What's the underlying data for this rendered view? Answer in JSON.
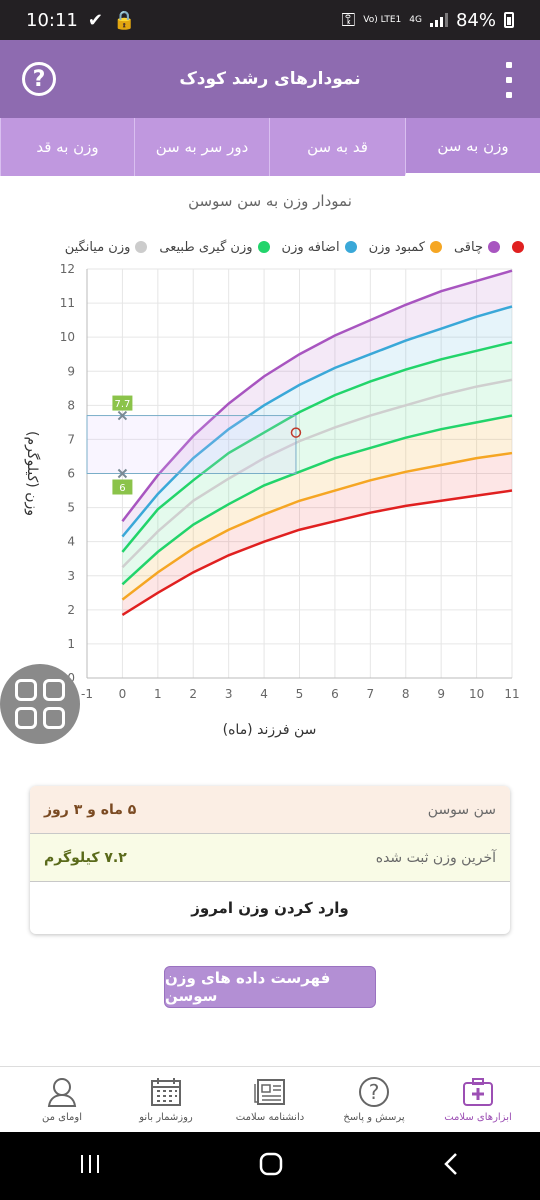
{
  "status": {
    "time": "10:11",
    "signal_label": "Vo) LTE1",
    "net": "4G",
    "battery": "84%"
  },
  "appbar": {
    "title": "نمودارهای رشد کودک",
    "help": "?"
  },
  "tabs": [
    {
      "label": "وزن به سن",
      "active": true
    },
    {
      "label": "قد به سن",
      "active": false
    },
    {
      "label": "دور سر به سن",
      "active": false
    },
    {
      "label": "وزن به قد",
      "active": false
    }
  ],
  "chart_title": "نمودار وزن به سن سوسن",
  "legend": [
    {
      "label": "چاقی",
      "color": "#a855c0"
    },
    {
      "label": "کمبود وزن",
      "color": "#f5a623"
    },
    {
      "label": "اضافه وزن",
      "color": "#3aa8d8"
    },
    {
      "label": "وزن گیری طبیعی",
      "color": "#22d46b"
    },
    {
      "label": "وزن میانگین",
      "color": "#cccccc"
    }
  ],
  "chart_data": {
    "type": "line",
    "xlabel": "سن فرزند (ماه)",
    "ylabel": "وزن (کیلوگرم)",
    "xlim": [
      -1,
      11
    ],
    "ylim": [
      0,
      12
    ],
    "x": [
      0,
      1,
      2,
      3,
      4,
      5,
      6,
      7,
      8,
      9,
      10,
      11
    ],
    "series": [
      {
        "name": "red",
        "color": "#e02020",
        "values": [
          1.85,
          2.5,
          3.1,
          3.6,
          4.0,
          4.35,
          4.6,
          4.85,
          5.05,
          5.2,
          5.35,
          5.5
        ]
      },
      {
        "name": "orange",
        "color": "#f5a623",
        "values": [
          2.3,
          3.1,
          3.8,
          4.35,
          4.8,
          5.2,
          5.5,
          5.8,
          6.05,
          6.25,
          6.45,
          6.6
        ]
      },
      {
        "name": "green-low",
        "color": "#22d46b",
        "values": [
          2.75,
          3.7,
          4.5,
          5.1,
          5.65,
          6.05,
          6.45,
          6.75,
          7.05,
          7.3,
          7.5,
          7.7
        ]
      },
      {
        "name": "avg",
        "color": "#cfcfcf",
        "values": [
          3.25,
          4.3,
          5.2,
          5.85,
          6.45,
          6.95,
          7.35,
          7.7,
          8.0,
          8.3,
          8.55,
          8.75
        ]
      },
      {
        "name": "green-high",
        "color": "#22d46b",
        "values": [
          3.7,
          4.95,
          5.8,
          6.6,
          7.2,
          7.8,
          8.3,
          8.7,
          9.05,
          9.35,
          9.6,
          9.85
        ]
      },
      {
        "name": "blue",
        "color": "#3aa8d8",
        "values": [
          4.15,
          5.4,
          6.45,
          7.3,
          8.0,
          8.6,
          9.1,
          9.5,
          9.9,
          10.25,
          10.6,
          10.9
        ]
      },
      {
        "name": "purple",
        "color": "#a855c0",
        "values": [
          4.6,
          5.95,
          7.1,
          8.05,
          8.85,
          9.5,
          10.05,
          10.5,
          10.95,
          11.35,
          11.65,
          11.95
        ]
      }
    ],
    "records": [
      {
        "x": 0,
        "y": 7.7,
        "label": "7.7"
      },
      {
        "x": 0,
        "y": 6,
        "label": "6"
      }
    ],
    "highlight": {
      "x": 4.9,
      "y": 7.2
    },
    "xticks": [
      -1,
      0,
      1,
      2,
      3,
      4,
      5,
      6,
      7,
      8,
      9,
      10,
      11
    ],
    "yticks": [
      0,
      1,
      2,
      3,
      4,
      5,
      6,
      7,
      8,
      9,
      10,
      11,
      12
    ]
  },
  "info": {
    "age_label": "سن سوسن",
    "age_value": "۵ ماه و ۳ روز",
    "weight_label": "آخرین وزن ثبت شده",
    "weight_value": "۷.۲ کیلوگرم",
    "enter_label": "وارد کردن وزن امروز"
  },
  "list_button": "فهرست داده های وزن سوسن",
  "nav": [
    {
      "label": "ابزارهای سلامت",
      "icon": "medkit-icon",
      "active": true
    },
    {
      "label": "پرسش و پاسخ",
      "icon": "question-icon",
      "active": false
    },
    {
      "label": "دانشنامه سلامت",
      "icon": "newspaper-icon",
      "active": false
    },
    {
      "label": "روزشمار بانو",
      "icon": "calendar-icon",
      "active": false
    },
    {
      "label": "اومای من",
      "icon": "profile-icon",
      "active": false
    }
  ]
}
